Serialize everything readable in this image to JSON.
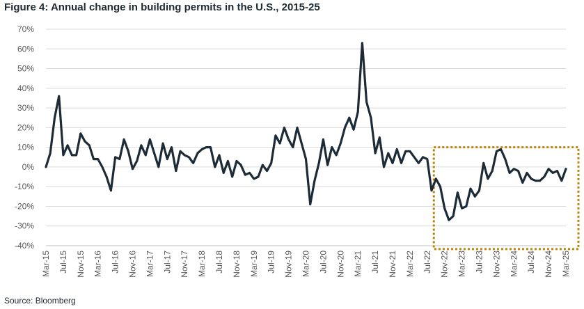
{
  "figure": {
    "title": "Figure 4: Annual change in building permits in the U.S., 2015-25",
    "source": "Source: Bloomberg"
  },
  "colors": {
    "line": "#1c2b36",
    "grid": "#d9d9d9",
    "highlight": "#b8860b",
    "text": "#595959"
  },
  "chart_data": {
    "type": "line",
    "title": "Figure 4: Annual change in building permits in the U.S., 2015-25",
    "xlabel": "",
    "ylabel": "",
    "ylim": [
      -40,
      70
    ],
    "yticks": [
      70,
      60,
      50,
      40,
      30,
      20,
      10,
      0,
      -10,
      -20,
      -30,
      -40
    ],
    "ytick_labels": [
      "70%",
      "60%",
      "50%",
      "40%",
      "30%",
      "20%",
      "10%",
      "0%",
      "-10%",
      "-20%",
      "-30%",
      "-40%"
    ],
    "grid": true,
    "xtick_labels": [
      "Mar-15",
      "Jul-15",
      "Nov-15",
      "Mar-16",
      "Jul-16",
      "Nov-16",
      "Mar-17",
      "Jul-17",
      "Nov-17",
      "Mar-18",
      "Jul-18",
      "Nov-18",
      "Mar-19",
      "Jul-19",
      "Nov-19",
      "Mar-20",
      "Jul-20",
      "Nov-20",
      "Mar-21",
      "Jul-21",
      "Nov-21",
      "Mar-22",
      "Jul-22",
      "Nov-22",
      "Mar-23",
      "Jul-23",
      "Nov-23",
      "Mar-24",
      "Jul-24",
      "Nov-24",
      "Mar-25"
    ],
    "series": [
      {
        "name": "Annual change in building permits",
        "start": "Mar-15",
        "frequency": "monthly",
        "values": [
          0,
          7,
          25,
          36,
          6,
          11,
          6,
          6,
          17,
          13,
          11,
          4,
          4,
          0,
          -5,
          -12,
          5,
          4,
          14,
          8,
          -1,
          3,
          11,
          6,
          14,
          7,
          0,
          12,
          4,
          10,
          -2,
          8,
          6,
          5,
          2,
          7,
          9,
          10,
          10,
          0,
          6,
          -3,
          3,
          -5,
          3,
          1,
          -4,
          -3,
          -6,
          -5,
          1,
          -2,
          2,
          16,
          12,
          20,
          14,
          10,
          20,
          12,
          4,
          -19,
          -7,
          2,
          14,
          1,
          10,
          6,
          12,
          20,
          25,
          19,
          28,
          63,
          33,
          25,
          7,
          15,
          0,
          7,
          2,
          9,
          2,
          8,
          8,
          5,
          2,
          5,
          4,
          -12,
          -6,
          -10,
          -21,
          -27,
          -25,
          -13,
          -21,
          -20,
          -11,
          -15,
          -12,
          2,
          -6,
          -2,
          8,
          9,
          4,
          -3,
          -1,
          -2,
          -8,
          -3,
          -6,
          -7,
          -7,
          -5,
          -1,
          -3,
          -2,
          -7,
          -1
        ]
      }
    ],
    "annotations": [
      {
        "type": "dashed-box",
        "label": "",
        "from": "Sep-22",
        "to": "Mar-25",
        "y_range": [
          -41,
          10
        ]
      }
    ]
  }
}
